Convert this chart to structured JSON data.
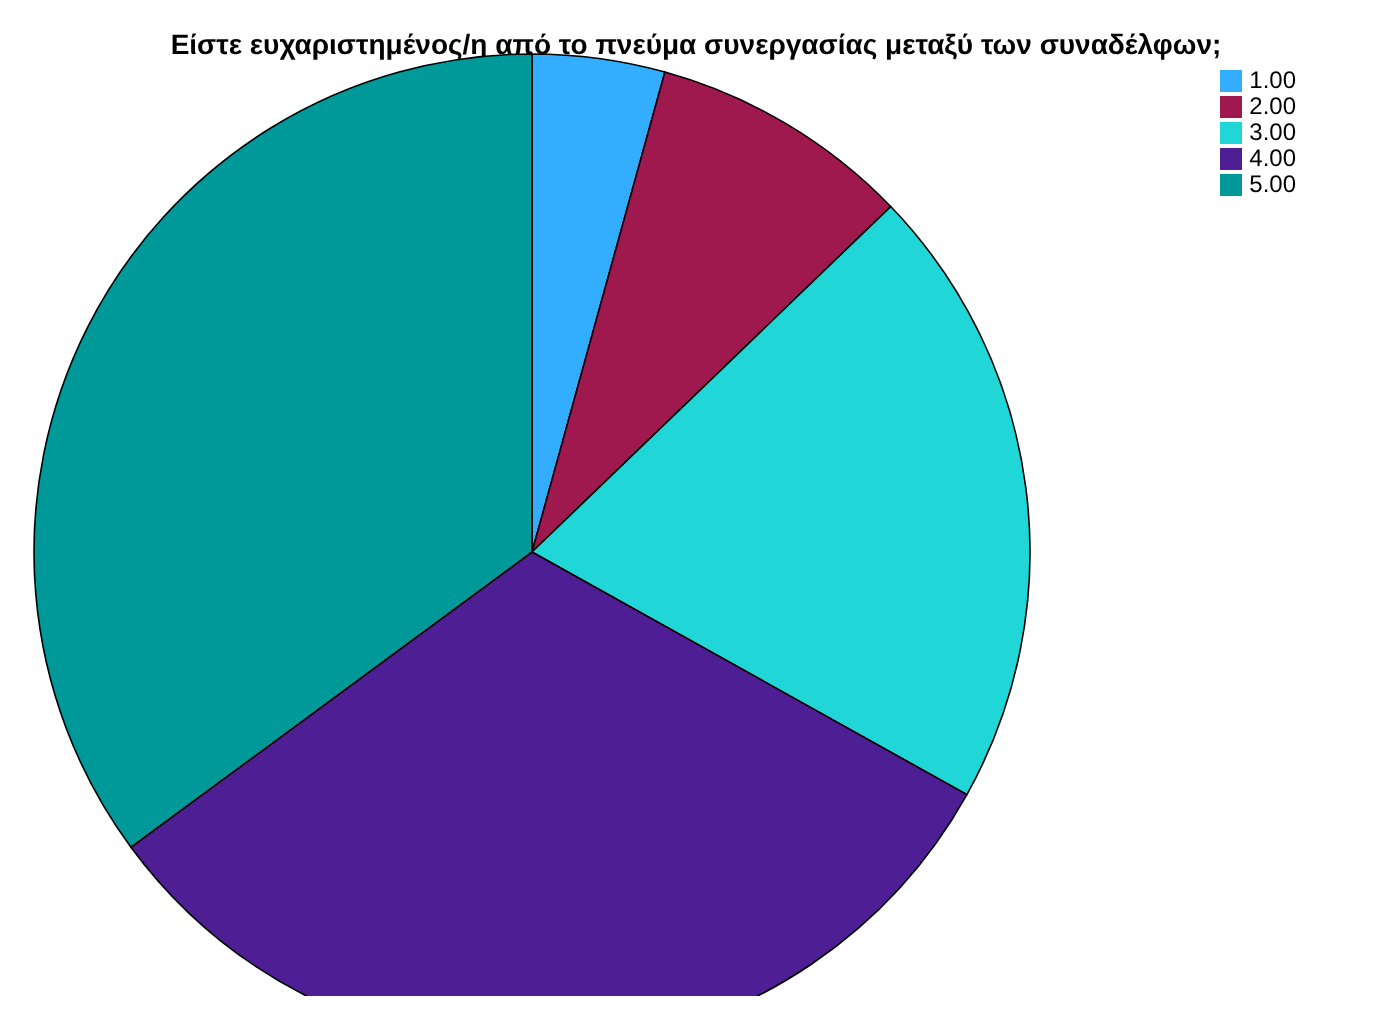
{
  "chart_data": {
    "type": "pie",
    "title": "Είστε ευχαριστημένος/η από το πνεύμα συνεργασίας μεταξύ των συναδέλφων;",
    "categories": [
      "1.00",
      "2.00",
      "3.00",
      "4.00",
      "5.00"
    ],
    "values": [
      4.3,
      8.5,
      20.3,
      31.8,
      35.1
    ],
    "colors": [
      "#33adff",
      "#a0194e",
      "#21d6d6",
      "#4e1f94",
      "#009999"
    ],
    "legend": "top right"
  }
}
